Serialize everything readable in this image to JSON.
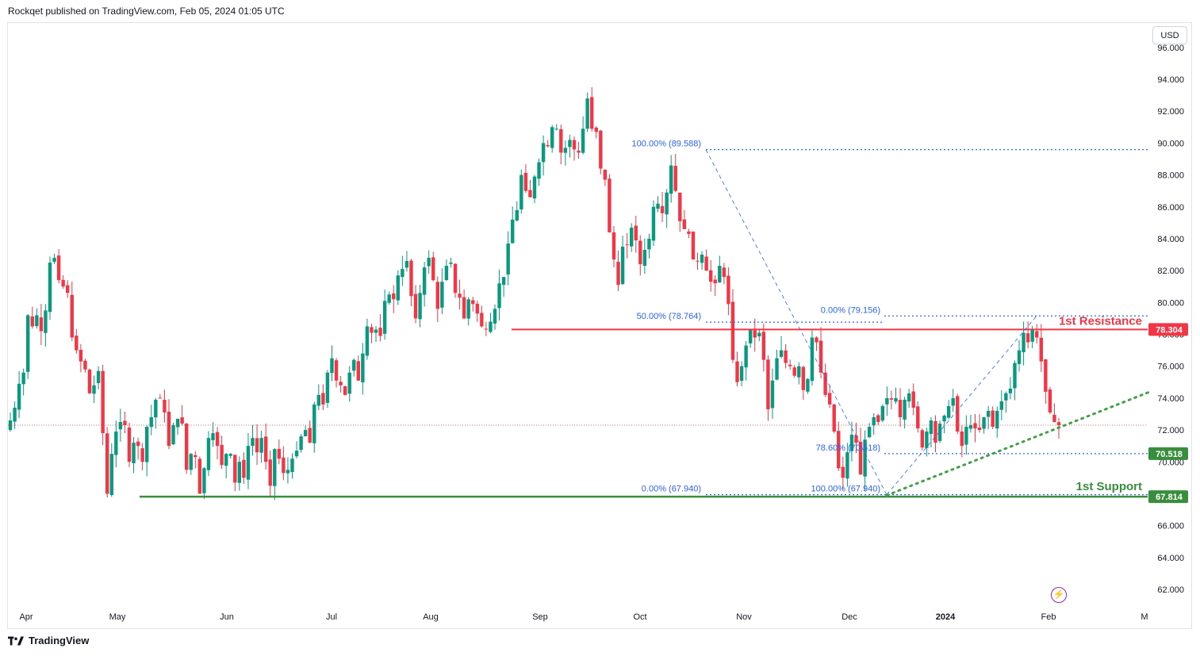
{
  "header": {
    "text": "Rockqet published on TradingView.com, Feb 05, 2024 01:05 UTC"
  },
  "currency_button": "USD",
  "footer": {
    "brand": "TradingView"
  },
  "chart_data": {
    "type": "candlestick",
    "title": "",
    "ylim": [
      61,
      96.5
    ],
    "y_ticks": [
      "62.000",
      "64.000",
      "66.000",
      "68.000",
      "70.000",
      "72.000",
      "74.000",
      "76.000",
      "78.000",
      "80.000",
      "82.000",
      "84.000",
      "86.000",
      "88.000",
      "90.000",
      "92.000",
      "94.000",
      "96.000"
    ],
    "x_ticks": [
      {
        "label": "Apr",
        "date": "2023-04-01"
      },
      {
        "label": "May",
        "date": "2023-05-01"
      },
      {
        "label": "Jun",
        "date": "2023-06-01"
      },
      {
        "label": "Jul",
        "date": "2023-07-01"
      },
      {
        "label": "Aug",
        "date": "2023-08-01"
      },
      {
        "label": "Sep",
        "date": "2023-09-01"
      },
      {
        "label": "Oct",
        "date": "2023-10-01"
      },
      {
        "label": "Nov",
        "date": "2023-11-01"
      },
      {
        "label": "Dec",
        "date": "2023-12-01"
      },
      {
        "label": "2024",
        "date": "2024-01-01"
      },
      {
        "label": "Feb",
        "date": "2024-02-01"
      },
      {
        "label": "M",
        "date": "2024-03-01"
      }
    ],
    "colors": {
      "up": "#089981",
      "down": "#f23645",
      "resistance": "#f23645",
      "support": "#388e3c",
      "fib": "#2962ff",
      "trend": "#43a047"
    },
    "closes": [
      72.6,
      73.4,
      74.9,
      75.6,
      79.2,
      78.5,
      79.2,
      78.2,
      79.5,
      82.5,
      82.8,
      81.4,
      81.0,
      80.6,
      77.8,
      77.0,
      76.3,
      75.8,
      74.3,
      74.8,
      75.7,
      71.8,
      68.0,
      70.5,
      71.9,
      72.5,
      72.3,
      70.0,
      71.2,
      71.0,
      70.0,
      72.2,
      72.8,
      73.9,
      74.0,
      73.1,
      71.0,
      72.3,
      72.7,
      72.4,
      69.5,
      70.5,
      70.3,
      68.0,
      69.6,
      71.5,
      71.8,
      71.0,
      69.8,
      70.5,
      70.5,
      68.7,
      70.0,
      69.0,
      71.0,
      71.5,
      70.6,
      71.5,
      70.0,
      68.5,
      70.8,
      70.2,
      69.3,
      69.5,
      70.2,
      70.7,
      71.6,
      72.0,
      71.2,
      73.6,
      74.2,
      73.6,
      75.6,
      76.5,
      75.1,
      74.8,
      74.2,
      75.6,
      76.4,
      75.1,
      76.8,
      78.5,
      78.1,
      78.3,
      77.9,
      80.1,
      80.5,
      80.2,
      81.7,
      82.1,
      82.6,
      80.4,
      79.0,
      80.6,
      82.2,
      82.8,
      81.4,
      79.6,
      81.3,
      82.3,
      82.5,
      80.6,
      80.3,
      79.0,
      80.2,
      79.9,
      79.3,
      78.5,
      78.3,
      78.8,
      79.6,
      81.2,
      81.6,
      83.7,
      85.2,
      85.8,
      88.0,
      87.0,
      86.6,
      87.9,
      88.8,
      90.0,
      89.8,
      91.0,
      90.9,
      89.4,
      89.7,
      90.2,
      89.6,
      89.4,
      90.9,
      92.8,
      90.9,
      90.7,
      88.4,
      87.7,
      84.4,
      82.7,
      81.1,
      83.5,
      83.6,
      84.7,
      83.9,
      82.4,
      83.3,
      84.0,
      86.0,
      86.2,
      85.6,
      86.9,
      88.6,
      87.0,
      85.1,
      84.6,
      84.3,
      82.7,
      82.6,
      83.0,
      82.0,
      81.3,
      81.2,
      82.3,
      81.6,
      79.9,
      76.4,
      75.0,
      76.0,
      77.3,
      78.3,
      77.8,
      78.1,
      76.4,
      73.3,
      75.1,
      76.5,
      77.0,
      76.2,
      76.0,
      75.4,
      76.0,
      74.5,
      75.2,
      77.8,
      77.5,
      75.6,
      74.2,
      73.6,
      71.9,
      69.6,
      69.0,
      70.6,
      71.7,
      71.2,
      69.2,
      71.4,
      72.2,
      72.8,
      72.5,
      73.5,
      74.0,
      73.9,
      74.0,
      72.8,
      73.9,
      74.3,
      73.4,
      72.1,
      70.9,
      71.9,
      72.6,
      71.2,
      72.4,
      72.9,
      73.5,
      74.0,
      71.9,
      71.0,
      72.2,
      72.3,
      72.1,
      72.0,
      72.8,
      73.2,
      72.2,
      73.2,
      73.8,
      74.3,
      74.6,
      76.2,
      77.0,
      78.1,
      77.5,
      78.3,
      77.8,
      76.3,
      74.4,
      73.1,
      72.5,
      72.3
    ],
    "volatility_note_removed": true,
    "horizontal_levels": [
      {
        "name": "resistance",
        "value": 78.304,
        "label": "1st Resistance",
        "price_tag": "78.304"
      },
      {
        "name": "support",
        "value": 67.814,
        "label": "1st Support",
        "price_tag": "67.814"
      },
      {
        "name": "fib-786",
        "value": 70.518,
        "price_tag": "70.518"
      }
    ],
    "fib_labels": [
      {
        "text": "100.00% (89.588)",
        "value": 89.588
      },
      {
        "text": "50.00% (78.764)",
        "value": 78.764
      },
      {
        "text": "0.00% (79.156)",
        "value": 79.156
      },
      {
        "text": "78.60% (70.518)",
        "value": 70.518
      },
      {
        "text": "0.00% (67.940)",
        "value": 67.94
      },
      {
        "text": "100.00% (67.940)",
        "value": 67.94
      }
    ],
    "last_price": 72.3
  }
}
